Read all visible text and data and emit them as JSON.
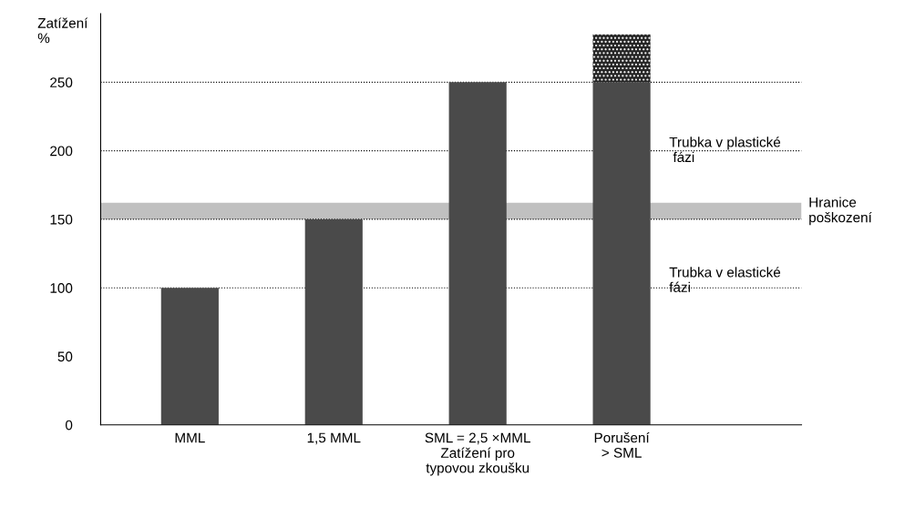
{
  "chart_data": {
    "type": "bar",
    "ylabel": "Zatížení\n%",
    "categories": [
      "MML",
      "1,5 MML",
      "SML = 2,5 ×MML\nZatížení pro\ntypovou zkoušku",
      "Porušení\n> SML"
    ],
    "stacked": true,
    "series": [
      {
        "color": "#4a4a4a",
        "values": [
          100,
          150,
          250,
          250
        ]
      },
      {
        "color": "#262626",
        "values": [
          null,
          null,
          null,
          35
        ]
      }
    ],
    "ylim": [
      0,
      300
    ],
    "yticks": [
      0,
      50,
      100,
      150,
      200,
      250
    ],
    "ref_lines": [
      {
        "axis": "y",
        "value": 100,
        "line_style": "dotted",
        "color": "#000000"
      },
      {
        "axis": "y",
        "value": 150,
        "line_style": "dotted",
        "color": "#000000"
      },
      {
        "axis": "y",
        "value": 200,
        "line_style": "dotted",
        "color": "#000000"
      },
      {
        "axis": "y",
        "value": 250,
        "line_style": "dotted",
        "color": "#000000"
      }
    ],
    "bands": [
      {
        "axis": "y",
        "from": 150,
        "to": 162,
        "label": "Hranice\npoškození",
        "color": "#c0c0c0"
      }
    ],
    "annotations": [
      "Trubka v plastické\n fázi",
      "Trubka v elastické\nfázi"
    ],
    "grid": false,
    "legend": false
  }
}
